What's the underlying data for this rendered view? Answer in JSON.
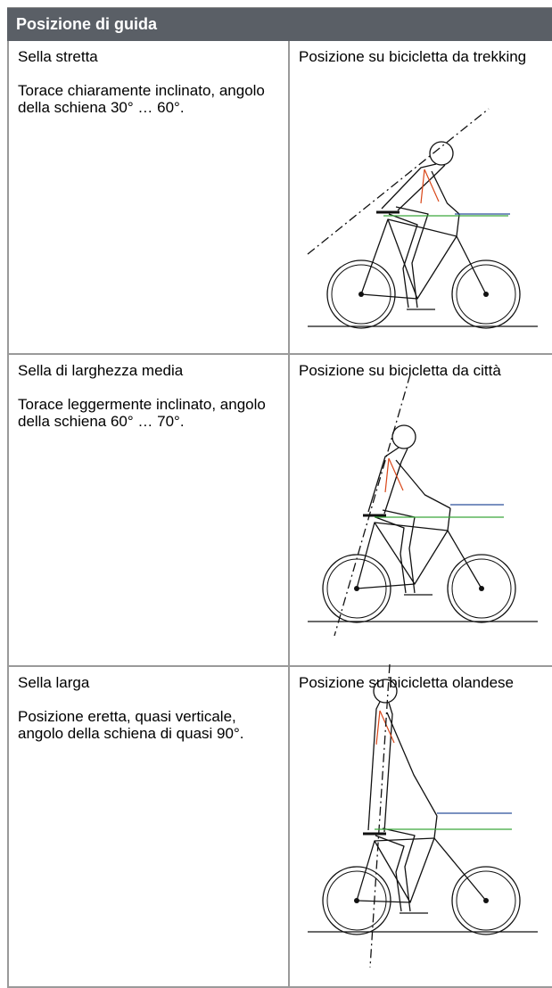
{
  "header": {
    "title": "Posizione di guida"
  },
  "rows": [
    {
      "saddle": "Sella stretta",
      "description": "Torace chiaramente inclinato, angolo della schiena 30° … 60°.",
      "caption": "Posizione su bicicletta da trekking"
    },
    {
      "saddle": "Sella di larghezza media",
      "description": "Torace leggermente inclinato, angolo della schiena 60° … 70°.",
      "caption": "Posizione su bicicletta da città"
    },
    {
      "saddle": "Sella larga",
      "description": "Posizione eretta, quasi verticale, angolo della schiena di quasi 90°.",
      "caption": "Posizione su bicicletta olandese"
    }
  ]
}
